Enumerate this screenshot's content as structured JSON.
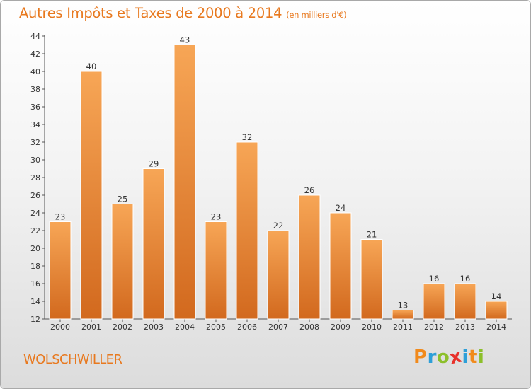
{
  "header": {
    "title": "Autres Impôts et Taxes de 2000 à 2014",
    "unit": "(en milliers d'€)"
  },
  "footer": {
    "commune": "WOLSCHWILLER",
    "logo": [
      "P",
      "r",
      "o",
      "x",
      "i",
      "t",
      "i"
    ]
  },
  "colors": {
    "accent": "#e8791f",
    "bar_top": "#f7a656",
    "bar_bottom": "#d2691e",
    "logo": [
      "#f18a1b",
      "#2d9fd8",
      "#8cbf2a",
      "#e8312a",
      "#2d9fd8",
      "#f18a1b",
      "#8cbf2a"
    ]
  },
  "chart_data": {
    "type": "bar",
    "title": "Autres Impôts et Taxes de 2000 à 2014",
    "subtitle": "(en milliers d'€)",
    "categories": [
      "2000",
      "2001",
      "2002",
      "2003",
      "2004",
      "2005",
      "2006",
      "2007",
      "2008",
      "2009",
      "2010",
      "2011",
      "2012",
      "2013",
      "2014"
    ],
    "values": [
      23,
      40,
      25,
      29,
      43,
      23,
      32,
      22,
      26,
      24,
      21,
      13,
      16,
      16,
      14
    ],
    "ylim": [
      12,
      44
    ],
    "yticks": [
      12,
      14,
      16,
      18,
      20,
      22,
      24,
      26,
      28,
      30,
      32,
      34,
      36,
      38,
      40,
      42,
      44
    ],
    "grid": false,
    "legend": "none"
  }
}
